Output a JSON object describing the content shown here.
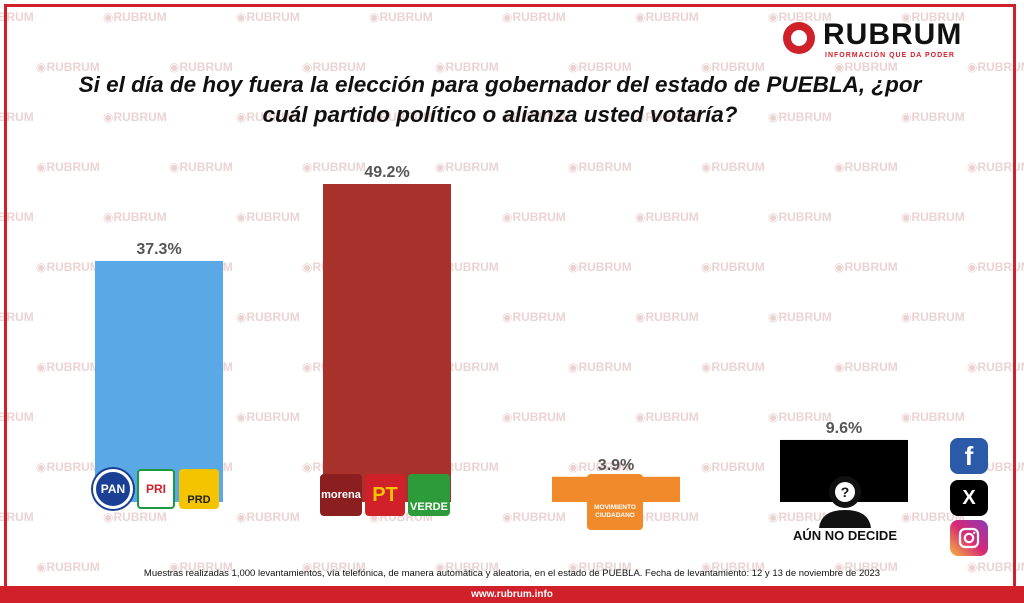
{
  "brand": {
    "name": "RUBRUM",
    "tagline": "INFORMACIÓN QUE DA PODER",
    "watermark_text": "RUBRUM",
    "website": "www.rubrum.info",
    "accent_color": "#d0202a"
  },
  "chart_data": {
    "type": "bar",
    "title": "Si el día de hoy fuera la elección para gobernador del estado de PUEBLA, ¿por cuál  partido político o alianza usted votaría?",
    "categories": [
      "PAN-PRI-PRD",
      "MORENA-PT-VERDE",
      "MOVIMIENTO CIUDADANO",
      "AÚN NO DECIDE"
    ],
    "values": [
      37.3,
      49.2,
      3.9,
      9.6
    ],
    "value_labels": [
      "37.3%",
      "49.2%",
      "3.9%",
      "9.6%"
    ],
    "colors": [
      "#5aa9e6",
      "#a8322b",
      "#f08a2a",
      "#000000"
    ],
    "ylim": [
      0,
      49.2
    ],
    "xlabel": "",
    "ylabel": "",
    "grid": false,
    "legend": "none"
  },
  "party_logos": {
    "pan": "PAN",
    "pri": "PRI",
    "prd": "PRD",
    "morena": "morena",
    "pt": "PT",
    "verde": "VERDE",
    "mc_line1": "MOVIMIENTO",
    "mc_line2": "CIUDADANO"
  },
  "undecided_label": "AÚN NO DECIDE",
  "social": {
    "facebook": "f",
    "x": "X"
  },
  "footnote": "Muestras realizadas 1,000 levantamientos, vía telefónica, de manera automática y aleatoria, en el estado de PUEBLA. Fecha de levantamiento: 12 y 13 de noviembre de 2023"
}
